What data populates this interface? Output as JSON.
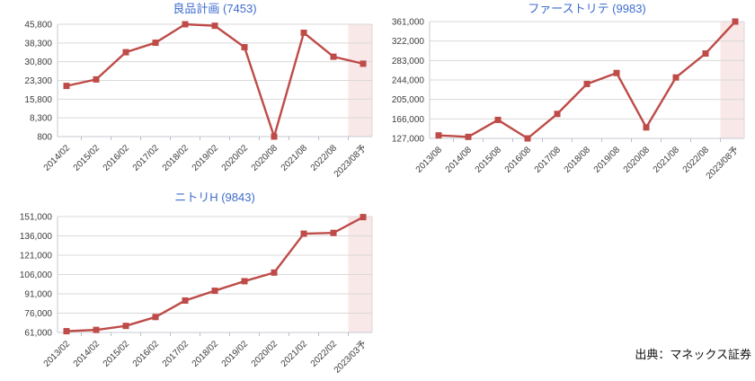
{
  "page": {
    "background": "#ffffff"
  },
  "source": {
    "label": "出典：マネックス証券"
  },
  "colors": {
    "title": "#3d6cce",
    "line": "#be4b48",
    "marker": "#be4b48",
    "forecast_band": "#f9e8e8",
    "grid": "#d9d9d9",
    "axis": "#c4cad2",
    "tick": "#b9bec6",
    "tick_text": "#3c3c3c"
  },
  "chart_data": [
    {
      "type": "line",
      "title": "良品計画 (7453)",
      "categories": [
        "2014/02",
        "2015/02",
        "2016/02",
        "2017/02",
        "2018/02",
        "2019/02",
        "2020/02",
        "2020/08",
        "2021/08",
        "2022/08",
        "2023/08予"
      ],
      "values": [
        21100,
        23700,
        34600,
        38400,
        45800,
        45200,
        36600,
        800,
        42400,
        32800,
        30000
      ],
      "ylim": [
        800,
        45800
      ],
      "yticks": [
        800,
        8300,
        15800,
        23300,
        30800,
        38300,
        45800
      ],
      "forecast_last_n": 1,
      "grid": true,
      "legend": "none",
      "marker": "square"
    },
    {
      "type": "line",
      "title": "ファーストリテ (9983)",
      "categories": [
        "2013/08",
        "2014/08",
        "2015/08",
        "2016/08",
        "2017/08",
        "2018/08",
        "2019/08",
        "2020/08",
        "2021/08",
        "2022/08",
        "2023/08予"
      ],
      "values": [
        133000,
        130000,
        164000,
        127000,
        176000,
        236000,
        258000,
        149000,
        249000,
        297000,
        361000
      ],
      "ylim": [
        127000,
        361000
      ],
      "yticks": [
        127000,
        166000,
        205000,
        244000,
        283000,
        322000,
        361000
      ],
      "forecast_last_n": 1,
      "grid": true,
      "legend": "none",
      "marker": "square"
    },
    {
      "type": "line",
      "title": "ニトリH (9843)",
      "categories": [
        "2013/02",
        "2014/02",
        "2015/02",
        "2016/02",
        "2017/02",
        "2018/02",
        "2019/02",
        "2020/02",
        "2021/02",
        "2022/02",
        "2023/03予"
      ],
      "values": [
        62000,
        63000,
        66100,
        73000,
        85800,
        93400,
        100800,
        107500,
        137700,
        138300,
        150600
      ],
      "ylim": [
        61000,
        151000
      ],
      "yticks": [
        61000,
        76000,
        91000,
        106000,
        121000,
        136000,
        151000
      ],
      "forecast_last_n": 1,
      "grid": true,
      "legend": "none",
      "marker": "square"
    }
  ]
}
